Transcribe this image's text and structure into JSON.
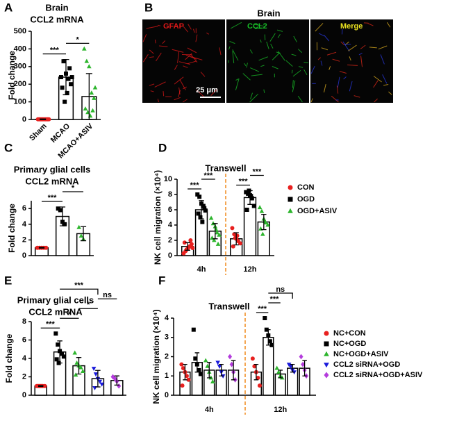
{
  "chart_data": [
    {
      "type": "bar",
      "panel": "A",
      "title": "Brain",
      "subtitle": "CCL2 mRNA",
      "y_label": "Fold change",
      "categories": [
        "Sham",
        "MCAO",
        "MCAO+ASIV"
      ],
      "values": [
        1,
        240,
        130
      ],
      "errors": [
        2,
        100,
        130
      ],
      "colors": [
        "#e8201f",
        "#000000",
        "#2db52d"
      ],
      "markers": [
        "circle",
        "square",
        "triangle"
      ],
      "points": [
        [
          1,
          1,
          1,
          1,
          1,
          1,
          1,
          1,
          1,
          1
        ],
        [
          240,
          330,
          260,
          230,
          200,
          180,
          100,
          150,
          290,
          240
        ],
        [
          400,
          330,
          300,
          150,
          120,
          60,
          40,
          20,
          50,
          180
        ]
      ],
      "ylim": [
        0,
        500
      ],
      "yticks": [
        0,
        100,
        200,
        300,
        400,
        500
      ],
      "annotations": [
        {
          "text": "***",
          "from": 0,
          "to": 1
        },
        {
          "text": "*",
          "from": 1,
          "to": 2
        }
      ]
    },
    {
      "type": "image",
      "panel": "B",
      "title": "Brain",
      "panels": [
        "GFAP",
        "CCL2",
        "Merge"
      ],
      "scale_bar": "25 μm"
    },
    {
      "type": "bar",
      "panel": "C",
      "title": "Primary glial cells",
      "subtitle": "CCL2 mRNA",
      "y_label": "Fold change",
      "categories": [
        null,
        null,
        null
      ],
      "values": [
        1,
        5,
        2.8
      ],
      "errors": [
        0.05,
        1.2,
        0.9
      ],
      "colors": [
        "#e8201f",
        "#000000",
        "#2db52d"
      ],
      "markers": [
        "circle",
        "square",
        "triangle"
      ],
      "points": [
        [
          1,
          1,
          1,
          1,
          1
        ],
        [
          6,
          5.8,
          4.3,
          4.0
        ],
        [
          3.6,
          2.5,
          2.1
        ]
      ],
      "ylim": [
        0,
        7
      ],
      "yticks": [
        0,
        2,
        4,
        6
      ],
      "annotations": [
        {
          "text": "***",
          "from": 0,
          "to": 1
        },
        {
          "text": "*",
          "from": 1,
          "to": 2
        }
      ]
    },
    {
      "type": "bar",
      "panel": "D",
      "title": "Transwell",
      "y_label": "NK cell migration (×10⁴)",
      "categories": [
        "4h",
        "12h"
      ],
      "legend": "right",
      "series": [
        {
          "name": "CON",
          "color": "#e8201f",
          "marker": "circle",
          "values": [
            1.2,
            2.2
          ],
          "errors": [
            0.5,
            0.8
          ],
          "points": [
            [
              0.3,
              0.6,
              0.9,
              1.2,
              1.5,
              1.7,
              0.8,
              1.1,
              2.0,
              1.0
            ],
            [
              3.6,
              2.8,
              2.2,
              1.9,
              1.6,
              1.2,
              2.3,
              2.6
            ]
          ]
        },
        {
          "name": "OGD",
          "color": "#000000",
          "marker": "square",
          "values": [
            6.0,
            7.6
          ],
          "errors": [
            1.2,
            0.9
          ],
          "points": [
            [
              8,
              7.7,
              6.8,
              6.5,
              5.9,
              5.5,
              5.0,
              4.4,
              6.2
            ],
            [
              8.3,
              8.1,
              7.9,
              7.5,
              6.5,
              6.0,
              8.5,
              7.8
            ]
          ]
        },
        {
          "name": "OGD+ASIV",
          "color": "#2db52d",
          "marker": "triangle",
          "values": [
            3.2,
            4.4
          ],
          "errors": [
            1.0,
            1.0
          ],
          "points": [
            [
              4.9,
              4.2,
              3.8,
              3.0,
              2.7,
              2.3,
              2.0,
              3.4,
              1.5
            ],
            [
              6.3,
              5.8,
              4.8,
              4.3,
              4.0,
              3.5,
              2.8,
              4.5
            ]
          ]
        }
      ],
      "ylim": [
        0,
        10
      ],
      "yticks": [
        0,
        2,
        4,
        6,
        8,
        10
      ],
      "annotations": [
        {
          "text": "***",
          "from": 0,
          "to": 1
        },
        {
          "text": "***",
          "from": 1,
          "to": 2
        },
        {
          "text": "***",
          "from": 3,
          "to": 4
        },
        {
          "text": "***",
          "from": 4,
          "to": 5
        }
      ]
    },
    {
      "type": "bar",
      "panel": "E",
      "title": "Primary glial cells",
      "subtitle": "CCL2 mRNA",
      "y_label": "Fold change",
      "categories": [
        null,
        null,
        null,
        null,
        null
      ],
      "values": [
        1,
        4.7,
        3.2,
        1.8,
        1.6
      ],
      "errors": [
        0.05,
        1.2,
        0.9,
        0.9,
        0.5
      ],
      "colors": [
        "#e8201f",
        "#000000",
        "#2db52d",
        "#1a1adb",
        "#b43cdc"
      ],
      "markers": [
        "circle",
        "square",
        "triangle",
        "triangle-down",
        "diamond"
      ],
      "points": [
        [
          1,
          1,
          1,
          1,
          1,
          1,
          1,
          1
        ],
        [
          6.7,
          5.5,
          4.8,
          4.5,
          4.2,
          3.9,
          3.5
        ],
        [
          4.6,
          3.5,
          3.2,
          3.0,
          2.6,
          2.2
        ],
        [
          2.9,
          2.3,
          1.8,
          1.5,
          1.2,
          0.8
        ],
        [
          2.0,
          1.8,
          1.5,
          1.0
        ]
      ],
      "ylim": [
        0,
        8
      ],
      "yticks": [
        0,
        2,
        4,
        6,
        8
      ],
      "annotations": [
        {
          "text": "***",
          "from": 0,
          "to": 1
        },
        {
          "text": "*",
          "from": 1,
          "to": 2
        },
        {
          "text": "*",
          "from": 2,
          "to": 3
        },
        {
          "text": "ns",
          "from": 3,
          "to": 4
        },
        {
          "text": "***",
          "from": 1,
          "to": 3
        }
      ]
    },
    {
      "type": "bar",
      "panel": "F",
      "title": "Transwell",
      "y_label": "NK cell migration (×10⁴)",
      "categories": [
        "4h",
        "12h"
      ],
      "legend": "right",
      "series": [
        {
          "name": "NC+CON",
          "color": "#e8201f",
          "marker": "circle",
          "values": [
            1.2,
            1.2
          ],
          "errors": [
            0.4,
            0.4
          ],
          "points": [
            [
              1.6,
              1.4,
              1.2,
              1.0,
              0.8,
              0.5
            ],
            [
              1.9,
              1.5,
              1.2,
              0.9,
              0.5
            ]
          ]
        },
        {
          "name": "NC+OGD",
          "color": "#000000",
          "marker": "square",
          "values": [
            1.7,
            3.0
          ],
          "errors": [
            0.5,
            0.4
          ],
          "points": [
            [
              3.4,
              1.9,
              1.6,
              1.3,
              1.1
            ],
            [
              4.0,
              3.4,
              3.1,
              2.8,
              2.6
            ]
          ]
        },
        {
          "name": "NC+OGD+ASIV",
          "color": "#2db52d",
          "marker": "triangle",
          "values": [
            1.3,
            1.1
          ],
          "errors": [
            0.4,
            0.2
          ],
          "points": [
            [
              1.8,
              1.5,
              1.2,
              0.9,
              0.7
            ],
            [
              1.4,
              1.2,
              1.0,
              0.9
            ]
          ]
        },
        {
          "name": "CCL2 siRNA+OGD",
          "color": "#1a1adb",
          "marker": "triangle-down",
          "values": [
            1.3,
            1.4
          ],
          "errors": [
            0.3,
            0.2
          ],
          "points": [
            [
              1.7,
              1.5,
              1.2,
              1.0
            ],
            [
              1.6,
              1.5,
              1.3,
              1.2
            ]
          ]
        },
        {
          "name": "CCL2 siRNA+OGD+ASIV",
          "color": "#b43cdc",
          "marker": "diamond",
          "values": [
            1.3,
            1.4
          ],
          "errors": [
            0.5,
            0.4
          ],
          "points": [
            [
              2.0,
              1.6,
              1.2,
              0.8
            ],
            [
              2.0,
              1.6,
              1.3,
              1.0
            ]
          ]
        }
      ],
      "ylim": [
        0,
        4
      ],
      "yticks": [
        0,
        1,
        2,
        3,
        4
      ],
      "annotations": [
        {
          "text": "***",
          "from": 5,
          "to": 6
        },
        {
          "text": "***",
          "from": 6,
          "to": 7
        },
        {
          "text": "ns",
          "from": 6,
          "to": 8
        }
      ]
    }
  ]
}
